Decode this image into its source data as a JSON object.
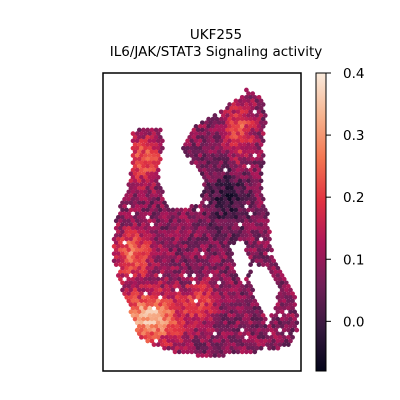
{
  "chart_data": {
    "type": "heatmap",
    "title": "UKF255",
    "subtitle": "IL6/JAK/STAT3 Signaling activity",
    "xlabel": "",
    "ylabel": "",
    "colorbar": {
      "colormap": "rocket",
      "vmin": -0.08,
      "vmax": 0.4,
      "ticks": [
        0.0,
        0.1,
        0.2,
        0.3,
        0.4
      ],
      "tick_labels": [
        "0.0",
        "0.1",
        "0.2",
        "0.3",
        "0.4"
      ]
    },
    "grid": false,
    "description_visible": "hexagonal spatial spot map; higher activity in lower-left and left lobe, lower activity in center-right"
  },
  "colors": {
    "cmap_stops": [
      "#03051a",
      "#36193e",
      "#701f57",
      "#ad1759",
      "#e13342",
      "#f37651",
      "#f6b48f",
      "#faebdd"
    ]
  }
}
